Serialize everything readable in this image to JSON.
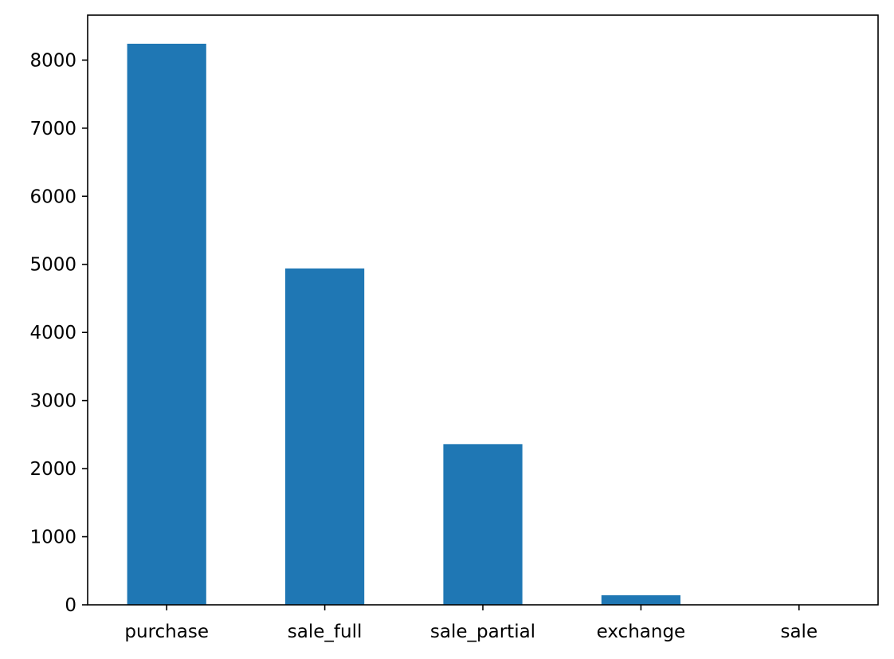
{
  "chart_data": {
    "type": "bar",
    "categories": [
      "purchase",
      "sale_full",
      "sale_partial",
      "exchange",
      "sale"
    ],
    "values": [
      8240,
      4940,
      2360,
      140,
      2
    ],
    "title": "",
    "xlabel": "",
    "ylabel": "",
    "ylim": [
      0,
      8660
    ],
    "yticks": [
      0,
      1000,
      2000,
      3000,
      4000,
      5000,
      6000,
      7000,
      8000
    ],
    "grid": false,
    "bar_color": "#1f77b4"
  }
}
